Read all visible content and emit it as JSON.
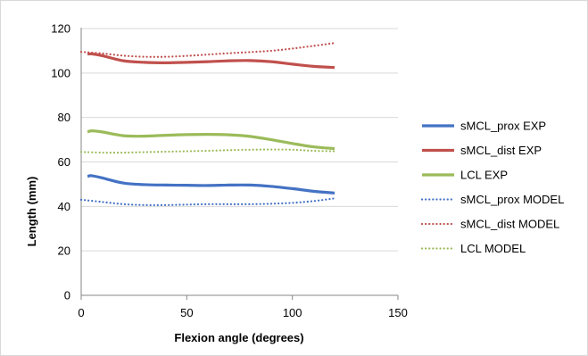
{
  "chart_data": {
    "type": "line",
    "title": "",
    "xlabel": "Flexion angle (degrees)",
    "ylabel": "Length (mm)",
    "xlim": [
      0,
      150
    ],
    "ylim": [
      0,
      120
    ],
    "x_ticks": [
      "0",
      "50",
      "100",
      "150"
    ],
    "y_ticks": [
      "0",
      "20",
      "40",
      "60",
      "80",
      "100",
      "120"
    ],
    "grid": "horizontal",
    "legend_position": "right",
    "series": [
      {
        "name": "sMCL_prox EXP",
        "color": "#4472C4",
        "style": "solid",
        "points": [
          [
            3,
            53.5
          ],
          [
            5,
            53.8
          ],
          [
            10,
            52.8
          ],
          [
            20,
            50.5
          ],
          [
            30,
            49.8
          ],
          [
            40,
            49.6
          ],
          [
            50,
            49.5
          ],
          [
            60,
            49.4
          ],
          [
            70,
            49.6
          ],
          [
            80,
            49.6
          ],
          [
            90,
            49.0
          ],
          [
            100,
            48.0
          ],
          [
            110,
            46.8
          ],
          [
            120,
            46.0
          ]
        ]
      },
      {
        "name": "sMCL_dist EXP",
        "color": "#C0504D",
        "style": "solid",
        "points": [
          [
            3,
            108.5
          ],
          [
            5,
            108.6
          ],
          [
            10,
            107.8
          ],
          [
            20,
            105.5
          ],
          [
            30,
            104.8
          ],
          [
            40,
            104.6
          ],
          [
            50,
            104.8
          ],
          [
            60,
            105.1
          ],
          [
            70,
            105.5
          ],
          [
            80,
            105.6
          ],
          [
            90,
            105.1
          ],
          [
            100,
            104.0
          ],
          [
            110,
            103.0
          ],
          [
            120,
            102.5
          ]
        ]
      },
      {
        "name": "LCL EXP",
        "color": "#9BBB59",
        "style": "solid",
        "points": [
          [
            3,
            73.5
          ],
          [
            5,
            74.0
          ],
          [
            10,
            73.5
          ],
          [
            20,
            71.8
          ],
          [
            30,
            71.6
          ],
          [
            40,
            72.0
          ],
          [
            50,
            72.3
          ],
          [
            60,
            72.4
          ],
          [
            70,
            72.2
          ],
          [
            80,
            71.5
          ],
          [
            90,
            70.0
          ],
          [
            100,
            68.3
          ],
          [
            110,
            66.8
          ],
          [
            120,
            66.0
          ]
        ]
      },
      {
        "name": "sMCL_prox MODEL",
        "color": "#4472C4",
        "style": "dotted",
        "points": [
          [
            0,
            43.0
          ],
          [
            10,
            42.0
          ],
          [
            20,
            41.0
          ],
          [
            30,
            40.6
          ],
          [
            40,
            40.6
          ],
          [
            50,
            40.8
          ],
          [
            60,
            41.0
          ],
          [
            70,
            41.0
          ],
          [
            80,
            41.0
          ],
          [
            90,
            41.2
          ],
          [
            100,
            41.6
          ],
          [
            110,
            42.4
          ],
          [
            120,
            43.6
          ]
        ]
      },
      {
        "name": "sMCL_dist MODEL",
        "color": "#C0504D",
        "style": "dotted",
        "points": [
          [
            0,
            109.5
          ],
          [
            10,
            108.8
          ],
          [
            20,
            107.8
          ],
          [
            30,
            107.3
          ],
          [
            40,
            107.3
          ],
          [
            50,
            107.7
          ],
          [
            60,
            108.3
          ],
          [
            70,
            108.9
          ],
          [
            80,
            109.4
          ],
          [
            90,
            110.0
          ],
          [
            100,
            111.0
          ],
          [
            110,
            112.2
          ],
          [
            120,
            113.5
          ]
        ]
      },
      {
        "name": "LCL MODEL",
        "color": "#9BBB59",
        "style": "dotted",
        "points": [
          [
            0,
            64.5
          ],
          [
            10,
            64.2
          ],
          [
            20,
            64.2
          ],
          [
            30,
            64.4
          ],
          [
            40,
            64.6
          ],
          [
            50,
            64.8
          ],
          [
            60,
            65.0
          ],
          [
            70,
            65.3
          ],
          [
            80,
            65.5
          ],
          [
            90,
            65.6
          ],
          [
            100,
            65.5
          ],
          [
            110,
            65.0
          ],
          [
            120,
            64.8
          ]
        ]
      }
    ]
  }
}
